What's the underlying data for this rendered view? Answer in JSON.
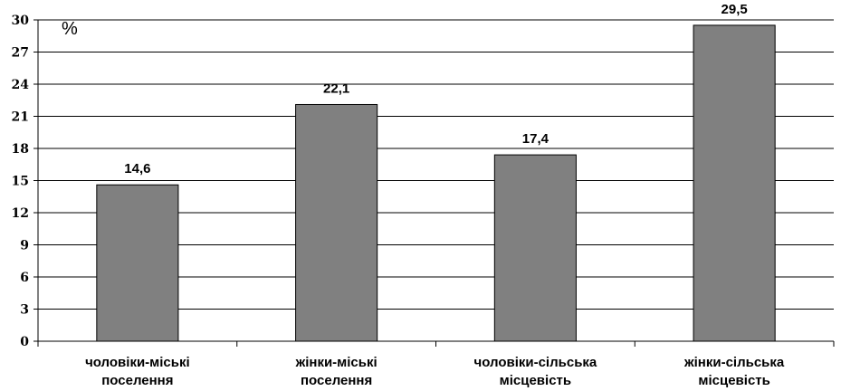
{
  "chart_data": {
    "type": "bar",
    "categories": [
      [
        "чоловіки-міські",
        "поселення"
      ],
      [
        "жінки-міські",
        "поселення"
      ],
      [
        "чоловіки-сільська",
        "місцевість"
      ],
      [
        "жінки-сільська",
        "місцевість"
      ]
    ],
    "values": [
      14.6,
      22.1,
      17.4,
      29.5
    ],
    "value_labels": [
      "14,6",
      "22,1",
      "17,4",
      "29,5"
    ],
    "unit_label": "%",
    "ylim": [
      0,
      30
    ],
    "yticks": [
      0,
      3,
      6,
      9,
      12,
      15,
      18,
      21,
      24,
      27,
      30
    ],
    "grid": true,
    "bar_color": "#808080",
    "bar_edge_color": "#000000"
  }
}
